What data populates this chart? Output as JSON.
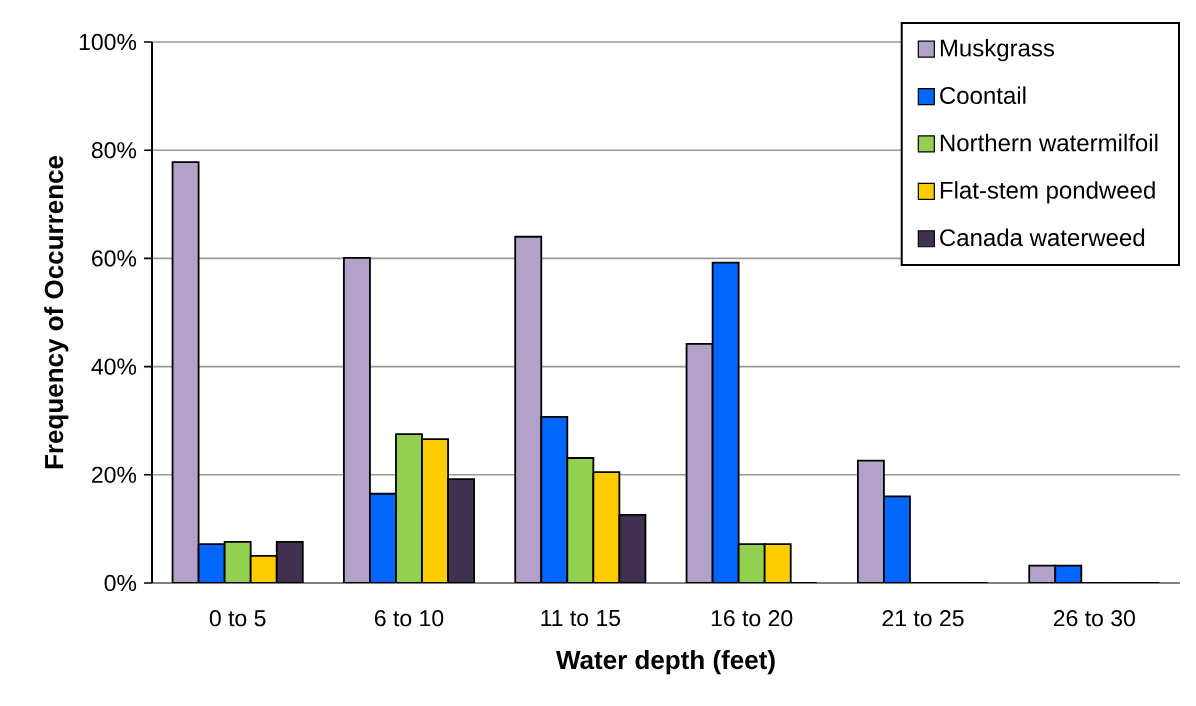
{
  "chart_data": {
    "type": "bar",
    "xlabel": "Water depth (feet)",
    "ylabel": "Frequency of Occurrence",
    "categories": [
      "0 to 5",
      "6 to 10",
      "11 to 15",
      "16 to 20",
      "21 to 25",
      "26 to 30"
    ],
    "series": [
      {
        "name": "Muskgrass",
        "color": "#b2a2c7",
        "values": [
          77.8,
          60.1,
          64.0,
          44.2,
          22.6,
          3.2
        ]
      },
      {
        "name": "Coontail",
        "color": "#0066ff",
        "values": [
          7.2,
          16.5,
          30.7,
          59.2,
          16.0,
          3.2
        ]
      },
      {
        "name": "Northern watermilfoil",
        "color": "#92d050",
        "values": [
          7.6,
          27.5,
          23.1,
          7.2,
          0,
          0
        ]
      },
      {
        "name": "Flat-stem pondweed",
        "color": "#ffcc00",
        "values": [
          5.0,
          26.6,
          20.5,
          7.2,
          0,
          0
        ]
      },
      {
        "name": "Canada waterweed",
        "color": "#403151",
        "values": [
          7.6,
          19.2,
          12.6,
          0,
          0,
          0
        ]
      }
    ],
    "ylim": [
      0,
      100
    ],
    "yticks": [
      {
        "value": 0,
        "label": "0%"
      },
      {
        "value": 20,
        "label": "20%"
      },
      {
        "value": 40,
        "label": "40%"
      },
      {
        "value": 60,
        "label": "60%"
      },
      {
        "value": 80,
        "label": "80%"
      },
      {
        "value": 100,
        "label": "100%"
      }
    ],
    "grid": "y",
    "legend": "top right"
  }
}
